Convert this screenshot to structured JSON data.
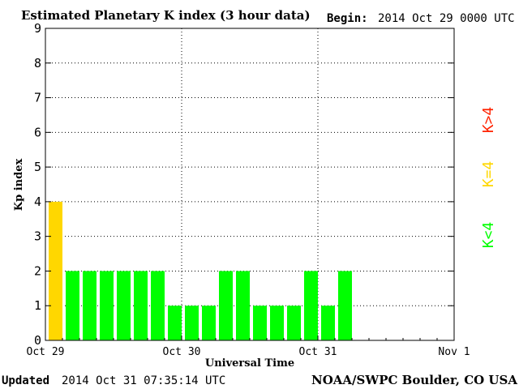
{
  "header": {
    "title": "Estimated Planetary K index (3 hour data)",
    "begin_label": "Begin:",
    "begin_value": "2014 Oct 29 0000 UTC"
  },
  "footer": {
    "updated_label": "Updated",
    "updated_value": "2014 Oct 31 07:35:14 UTC",
    "credit": "NOAA/SWPC Boulder, CO USA"
  },
  "legend": {
    "high": "K>4",
    "equal": "K=4",
    "low": "K<4"
  },
  "colors": {
    "low": "#00ff00",
    "equal": "#ffd700",
    "high": "#ff2200",
    "grid": "#000000"
  },
  "chart_data": {
    "type": "bar",
    "ylabel": "Kp index",
    "xlabel": "Universal Time",
    "ylim": [
      0,
      9
    ],
    "yticks": [
      0,
      1,
      2,
      3,
      4,
      5,
      6,
      7,
      8,
      9
    ],
    "xlim_hours": [
      0,
      72
    ],
    "xticks": [
      {
        "hour": 0,
        "label": "Oct 29"
      },
      {
        "hour": 24,
        "label": "Oct 30"
      },
      {
        "hour": 48,
        "label": "Oct 31"
      },
      {
        "hour": 72,
        "label": "Nov 1"
      }
    ],
    "interval_hours": 3,
    "values": [
      4,
      2,
      2,
      2,
      2,
      2,
      2,
      1,
      1,
      1,
      2,
      2,
      1,
      1,
      1,
      2,
      1,
      2
    ],
    "grid": "dotted"
  }
}
